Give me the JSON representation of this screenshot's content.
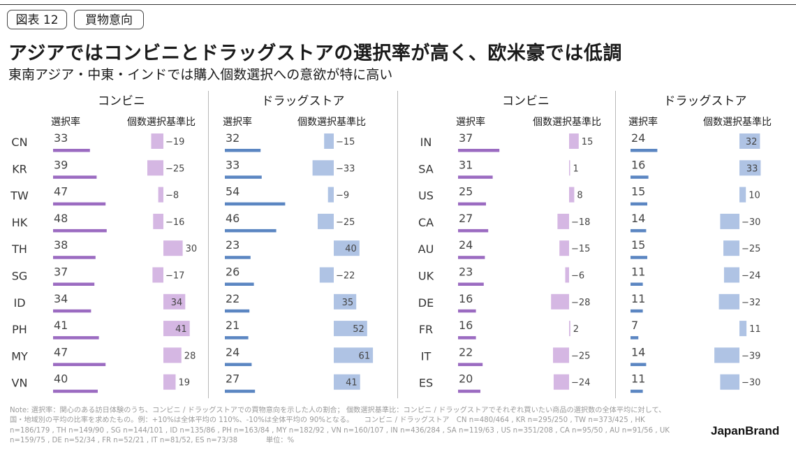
{
  "header": {
    "tag_figure": "図表 12",
    "tag_topic": "買物意向",
    "title": "アジアではコンビニとドラッグストアの選択率が高く、欧米豪では低調",
    "subtitle": "東南アジア・中東・インドでは購入個数選択への意欲が特に高い"
  },
  "labels": {
    "convenience": "コンビニ",
    "drugstore": "ドラッグストア",
    "selection_rate": "選択率",
    "quantity_index": "個数選択基準比"
  },
  "colors": {
    "convenience_rate": "#9b6bc1",
    "convenience_index": "#d5b7e3",
    "drugstore_rate": "#5b86c2",
    "drugstore_index": "#afc3e4"
  },
  "chart_data": [
    {
      "type": "bar",
      "title": "コンビニ",
      "group": "asia",
      "categories": [
        "CN",
        "KR",
        "TW",
        "HK",
        "TH",
        "SG",
        "ID",
        "PH",
        "MY",
        "VN"
      ],
      "series": [
        {
          "name": "選択率",
          "values": [
            33,
            39,
            47,
            48,
            38,
            37,
            34,
            41,
            47,
            40
          ]
        },
        {
          "name": "個数選択基準比",
          "values": [
            -19,
            -25,
            -8,
            -16,
            30,
            -17,
            34,
            41,
            28,
            19
          ]
        }
      ]
    },
    {
      "type": "bar",
      "title": "ドラッグストア",
      "group": "asia",
      "categories": [
        "CN",
        "KR",
        "TW",
        "HK",
        "TH",
        "SG",
        "ID",
        "PH",
        "MY",
        "VN"
      ],
      "series": [
        {
          "name": "選択率",
          "values": [
            32,
            33,
            54,
            46,
            23,
            26,
            22,
            21,
            24,
            27
          ]
        },
        {
          "name": "個数選択基準比",
          "values": [
            -15,
            -33,
            -9,
            -25,
            40,
            -22,
            35,
            52,
            61,
            41
          ]
        }
      ]
    },
    {
      "type": "bar",
      "title": "コンビニ",
      "group": "others",
      "categories": [
        "IN",
        "SA",
        "US",
        "CA",
        "AU",
        "UK",
        "DE",
        "FR",
        "IT",
        "ES"
      ],
      "series": [
        {
          "name": "選択率",
          "values": [
            37,
            31,
            25,
            27,
            24,
            23,
            16,
            16,
            22,
            20
          ]
        },
        {
          "name": "個数選択基準比",
          "values": [
            15,
            1,
            8,
            -18,
            -15,
            -6,
            -28,
            2,
            -25,
            -24
          ]
        }
      ]
    },
    {
      "type": "bar",
      "title": "ドラッグストア",
      "group": "others",
      "categories": [
        "IN",
        "SA",
        "US",
        "CA",
        "AU",
        "UK",
        "DE",
        "FR",
        "IT",
        "ES"
      ],
      "series": [
        {
          "name": "選択率",
          "values": [
            24,
            16,
            15,
            14,
            15,
            11,
            11,
            7,
            14,
            11
          ]
        },
        {
          "name": "個数選択基準比",
          "values": [
            32,
            33,
            10,
            -30,
            -25,
            -24,
            -32,
            11,
            -39,
            -30
          ]
        }
      ]
    }
  ],
  "footer": {
    "note": "Note: 選択率：関心のある訪日体験のうち、コンビニ / ドラッグストアでの買物意向を示した人の割合； 個数選択基準比：コンビニ / ドラッグストアでそれぞれ買いたい商品の選択数の全体平均に対して、国・地域別の平均の比率を求めたもの。例：+10%は全体平均の 110%、-10%は全体平均の 90%となる。　　コンビニ / ドラッグストア　CN n=480/464 , KR n=295/250 , TW n=373/425 , HK n=186/179 , TH n=149/90 , SG n=144/101 , ID n=135/86 , PH n=163/84 , MY n=182/92 , VN n=160/107 , IN n=436/284 , SA n=119/63 , US n=351/208 , CA n=95/50 , AU n=91/56 , UK n=159/75 , DE n=52/34 , FR n=52/21 , IT n=81/52, ES n=73/38　　　　単位：%",
    "brand": "JapanBrand"
  }
}
